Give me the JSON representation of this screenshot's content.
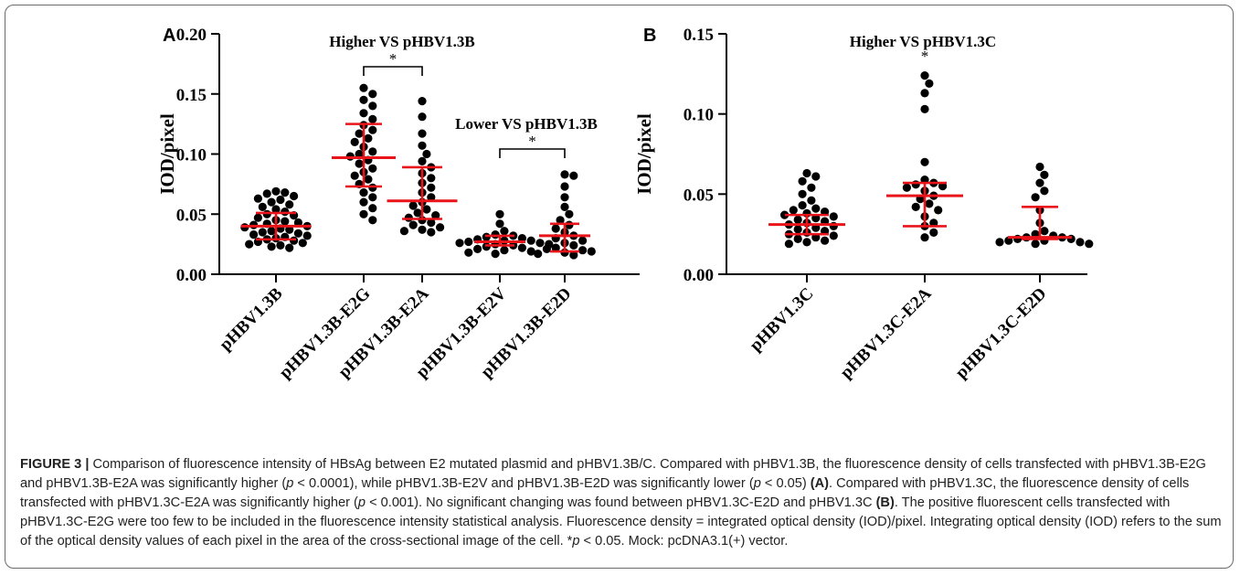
{
  "caption": {
    "figure_label": "FIGURE 3 |",
    "segments": [
      {
        "text": " Comparison of fluorescence intensity of HBsAg between E2 mutated plasmid and pHBV1.3B/C. Compared with pHBV1.3B, the fluorescence density of cells transfected with pHBV1.3B-E2G and pHBV1.3B-E2A was significantly higher (",
        "bold": false
      },
      {
        "text": "p",
        "italic": true
      },
      {
        "text": " < 0.0001), while pHBV1.3B-E2V and pHBV1.3B-E2D was significantly lower (",
        "bold": false
      },
      {
        "text": "p",
        "italic": true
      },
      {
        "text": " < 0.05) ",
        "bold": false
      },
      {
        "text": "(A)",
        "bold": true
      },
      {
        "text": ". Compared with pHBV1.3C, the fluorescence density of cells transfected with pHBV1.3C-E2A was significantly higher (",
        "bold": false
      },
      {
        "text": "p",
        "italic": true
      },
      {
        "text": " < 0.001). No significant changing was found between pHBV1.3C-E2D and pHBV1.3C ",
        "bold": false
      },
      {
        "text": "(B)",
        "bold": true
      },
      {
        "text": ". The positive fluorescent cells transfected with pHBV1.3C-E2G were too few to be included in the fluorescence intensity statistical analysis. Fluorescence density = integrated optical density (IOD)/pixel. Integrating optical density (IOD) refers to the sum of the optical density values of each pixel in the area of the cross-sectional image of the cell. *",
        "bold": false
      },
      {
        "text": "p",
        "italic": true
      },
      {
        "text": " < 0.05. Mock: pcDNA3.1(+) vector.",
        "bold": false
      }
    ]
  },
  "colors": {
    "points": "#000000",
    "summary": "#e8141a",
    "axis": "#000000"
  },
  "chart_data": [
    {
      "type": "scatter",
      "panel": "A",
      "ylabel": "IOD/pixel",
      "ylim": [
        0,
        0.2
      ],
      "yticks": [
        "0.00",
        "0.05",
        "0.10",
        "0.15",
        "0.20"
      ],
      "categories": [
        "pHBV1.3B",
        "pHBV1.3B-E2G",
        "pHBV1.3B-E2A",
        "pHBV1.3B-E2V",
        "pHBV1.3B-E2D"
      ],
      "groups": [
        {
          "category": "pHBV1.3B",
          "median": 0.04,
          "q1": 0.029,
          "q3": 0.051,
          "points": [
            0.069,
            0.068,
            0.067,
            0.065,
            0.063,
            0.062,
            0.06,
            0.058,
            0.056,
            0.054,
            0.052,
            0.05,
            0.049,
            0.047,
            0.045,
            0.044,
            0.043,
            0.042,
            0.041,
            0.04,
            0.039,
            0.038,
            0.037,
            0.036,
            0.035,
            0.034,
            0.033,
            0.032,
            0.031,
            0.03,
            0.029,
            0.028,
            0.027,
            0.026,
            0.025,
            0.024,
            0.023,
            0.022
          ]
        },
        {
          "category": "pHBV1.3B-E2G",
          "median": 0.097,
          "q1": 0.073,
          "q3": 0.125,
          "points": [
            0.155,
            0.15,
            0.145,
            0.14,
            0.134,
            0.129,
            0.124,
            0.12,
            0.117,
            0.113,
            0.11,
            0.106,
            0.102,
            0.1,
            0.098,
            0.095,
            0.092,
            0.088,
            0.085,
            0.082,
            0.079,
            0.075,
            0.072,
            0.068,
            0.064,
            0.06,
            0.055,
            0.05,
            0.045
          ]
        },
        {
          "category": "pHBV1.3B-E2A",
          "median": 0.061,
          "q1": 0.046,
          "q3": 0.089,
          "points": [
            0.144,
            0.131,
            0.117,
            0.107,
            0.1,
            0.094,
            0.089,
            0.084,
            0.08,
            0.076,
            0.072,
            0.068,
            0.064,
            0.06,
            0.057,
            0.054,
            0.051,
            0.049,
            0.047,
            0.045,
            0.043,
            0.041,
            0.039,
            0.037,
            0.036,
            0.035
          ]
        },
        {
          "category": "pHBV1.3B-E2V",
          "median": 0.027,
          "q1": 0.024,
          "q3": 0.032,
          "points": [
            0.05,
            0.042,
            0.036,
            0.033,
            0.032,
            0.031,
            0.03,
            0.029,
            0.028,
            0.028,
            0.027,
            0.026,
            0.026,
            0.025,
            0.025,
            0.024,
            0.023,
            0.022,
            0.021,
            0.02,
            0.019,
            0.018,
            0.017
          ]
        },
        {
          "category": "pHBV1.3B-E2D",
          "median": 0.032,
          "q1": 0.019,
          "q3": 0.042,
          "points": [
            0.083,
            0.082,
            0.073,
            0.064,
            0.056,
            0.05,
            0.045,
            0.041,
            0.038,
            0.035,
            0.032,
            0.03,
            0.028,
            0.026,
            0.024,
            0.022,
            0.021,
            0.02,
            0.019,
            0.018,
            0.017,
            0.016
          ]
        }
      ],
      "annotations": [
        {
          "text": "Higher VS pHBV1.3B",
          "star": "*",
          "from": "pHBV1.3B-E2G",
          "to": "pHBV1.3B-E2A"
        },
        {
          "text": "Lower VS pHBV1.3B",
          "star": "*",
          "from": "pHBV1.3B-E2V",
          "to": "pHBV1.3B-E2D"
        }
      ]
    },
    {
      "type": "scatter",
      "panel": "B",
      "ylabel": "IOD/pixel",
      "ylim": [
        0,
        0.15
      ],
      "yticks": [
        "0.00",
        "0.05",
        "0.10",
        "0.15"
      ],
      "categories": [
        "pHBV1.3C",
        "pHBV1.3C-E2A",
        "pHBV1.3C-E2D"
      ],
      "groups": [
        {
          "category": "pHBV1.3C",
          "median": 0.031,
          "q1": 0.025,
          "q3": 0.037,
          "points": [
            0.063,
            0.061,
            0.058,
            0.054,
            0.05,
            0.046,
            0.043,
            0.041,
            0.04,
            0.039,
            0.038,
            0.037,
            0.036,
            0.035,
            0.034,
            0.033,
            0.032,
            0.031,
            0.03,
            0.029,
            0.028,
            0.027,
            0.026,
            0.025,
            0.024,
            0.023,
            0.022,
            0.021,
            0.02,
            0.019
          ]
        },
        {
          "category": "pHBV1.3C-E2A",
          "median": 0.049,
          "q1": 0.03,
          "q3": 0.057,
          "points": [
            0.124,
            0.119,
            0.113,
            0.103,
            0.07,
            0.059,
            0.057,
            0.056,
            0.055,
            0.054,
            0.052,
            0.049,
            0.047,
            0.044,
            0.042,
            0.04,
            0.036,
            0.032,
            0.03,
            0.026,
            0.023
          ]
        },
        {
          "category": "pHBV1.3C-E2D",
          "median": 0.023,
          "q1": 0.022,
          "q3": 0.042,
          "points": [
            0.067,
            0.062,
            0.057,
            0.052,
            0.048,
            0.04,
            0.032,
            0.027,
            0.025,
            0.024,
            0.023,
            0.023,
            0.022,
            0.022,
            0.021,
            0.021,
            0.02,
            0.02,
            0.019,
            0.019
          ]
        }
      ],
      "annotations": [
        {
          "text": "Higher VS pHBV1.3C",
          "star": "*",
          "over": "pHBV1.3C-E2A"
        }
      ]
    }
  ]
}
